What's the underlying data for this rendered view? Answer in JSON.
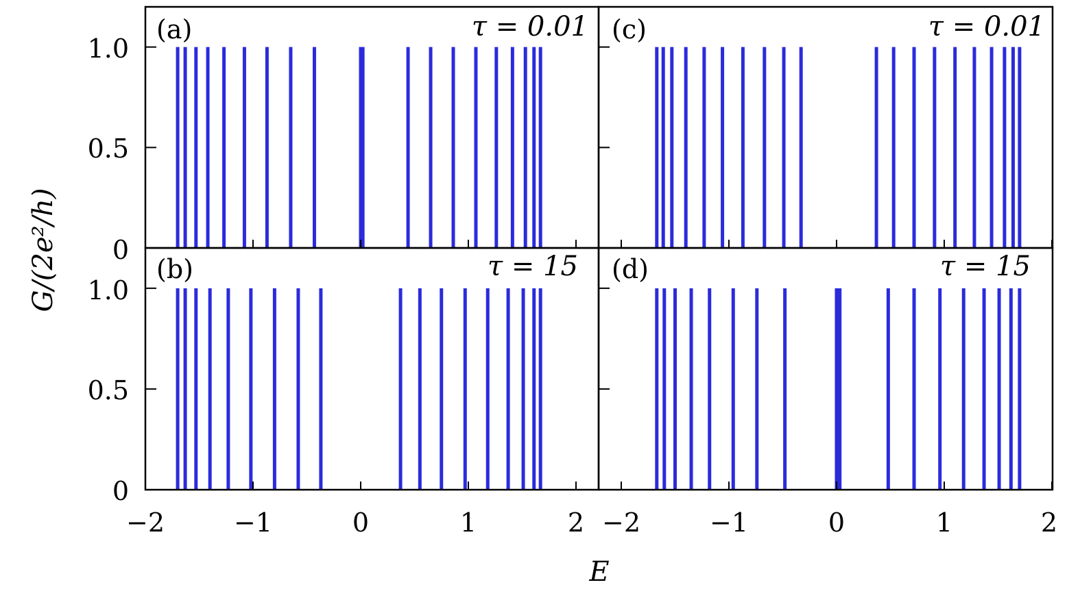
{
  "chart_data": [
    {
      "type": "bar",
      "panel": "(a)",
      "annotation": "τ = 0.01",
      "xlim": [
        -2,
        2
      ],
      "ylim": [
        0,
        1.2
      ],
      "x": [
        -1.7,
        -1.63,
        -1.53,
        -1.42,
        -1.27,
        -1.08,
        -0.87,
        -0.65,
        -0.43,
        0.0,
        0.02,
        0.44,
        0.65,
        0.86,
        1.07,
        1.26,
        1.41,
        1.53,
        1.61,
        1.67
      ],
      "values": [
        1,
        1,
        1,
        1,
        1,
        1,
        1,
        1,
        1,
        1,
        1,
        1,
        1,
        1,
        1,
        1,
        1,
        1,
        1,
        1
      ]
    },
    {
      "type": "bar",
      "panel": "(b)",
      "annotation": "τ = 15",
      "xlim": [
        -2,
        2
      ],
      "ylim": [
        0,
        1.2
      ],
      "x": [
        -1.7,
        -1.63,
        -1.53,
        -1.4,
        -1.23,
        -1.02,
        -0.8,
        -0.58,
        -0.37,
        0.37,
        0.55,
        0.75,
        0.97,
        1.18,
        1.37,
        1.51,
        1.61,
        1.67
      ],
      "values": [
        1,
        1,
        1,
        1,
        1,
        1,
        1,
        1,
        1,
        1,
        1,
        1,
        1,
        1,
        1,
        1,
        1,
        1
      ]
    },
    {
      "type": "bar",
      "panel": "(c)",
      "annotation": "τ = 0.01",
      "xlim": [
        -2,
        2
      ],
      "ylim": [
        0,
        1.2
      ],
      "x": [
        -1.67,
        -1.61,
        -1.53,
        -1.4,
        -1.23,
        -1.06,
        -0.87,
        -0.67,
        -0.49,
        -0.33,
        0.37,
        0.53,
        0.72,
        0.91,
        1.1,
        1.28,
        1.44,
        1.56,
        1.64,
        1.7
      ],
      "values": [
        1,
        1,
        1,
        1,
        1,
        1,
        1,
        1,
        1,
        1,
        1,
        1,
        1,
        1,
        1,
        1,
        1,
        1,
        1,
        1
      ]
    },
    {
      "type": "bar",
      "panel": "(d)",
      "annotation": "τ = 15",
      "xlim": [
        -2,
        2
      ],
      "ylim": [
        0,
        1.2
      ],
      "x": [
        -1.67,
        -1.6,
        -1.5,
        -1.35,
        -1.18,
        -0.96,
        -0.74,
        -0.48,
        0.0,
        0.03,
        0.48,
        0.72,
        0.96,
        1.18,
        1.37,
        1.51,
        1.62,
        1.7
      ],
      "values": [
        1,
        1,
        1,
        1,
        1,
        1,
        1,
        1,
        1,
        1,
        1,
        1,
        1,
        1,
        1,
        1,
        1,
        1
      ]
    }
  ],
  "axes": {
    "xlabel": "E",
    "ylabel": "G/(2e²/h)",
    "xticks": [
      "−2",
      "−1",
      "0",
      "1",
      "2"
    ],
    "yticks_top": [
      "1.0",
      "0.5",
      "0"
    ],
    "yticks_bottom": [
      "1.0",
      "0.5",
      "0"
    ]
  },
  "colors": {
    "peak": "#2b2bdc"
  }
}
